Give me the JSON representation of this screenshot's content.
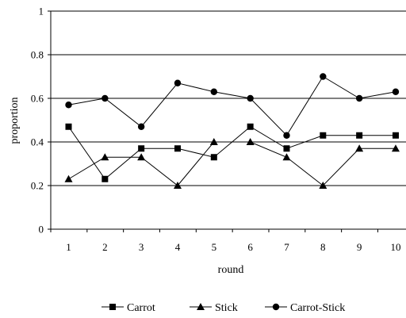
{
  "chart_data": {
    "type": "line",
    "xlabel": "round",
    "ylabel": "proportion",
    "x": [
      1,
      2,
      3,
      4,
      5,
      6,
      7,
      8,
      9,
      10
    ],
    "ylim": [
      0,
      1
    ],
    "yticks": [
      "0",
      "0.2",
      "0.4",
      "0.6",
      "0.8",
      "1"
    ],
    "grid": "horizontal",
    "legend_position": "bottom",
    "series": [
      {
        "name": "Carrot",
        "marker": "square",
        "values": [
          0.47,
          0.23,
          0.37,
          0.37,
          0.33,
          0.47,
          0.37,
          0.43,
          0.43,
          0.43
        ]
      },
      {
        "name": "Stick",
        "marker": "triangle",
        "values": [
          0.23,
          0.33,
          0.33,
          0.2,
          0.4,
          0.4,
          0.33,
          0.2,
          0.37,
          0.37
        ]
      },
      {
        "name": "Carrot-Stick",
        "marker": "circle",
        "values": [
          0.57,
          0.6,
          0.47,
          0.67,
          0.63,
          0.6,
          0.43,
          0.7,
          0.6,
          0.63
        ]
      }
    ]
  }
}
